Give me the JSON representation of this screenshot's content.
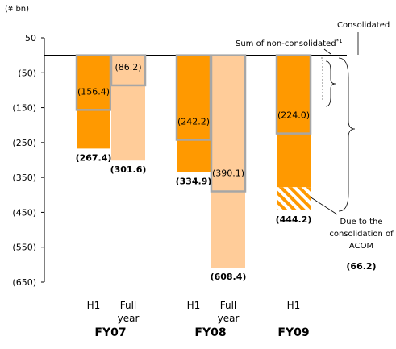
{
  "chart_data": {
    "type": "bar",
    "unit_label": "(¥ bn)",
    "y_ticks": [
      "50",
      "(50)",
      "(150)",
      "(250)",
      "(350)",
      "(450)",
      "(550)",
      "(650)"
    ],
    "y_tick_values": [
      50,
      -50,
      -150,
      -250,
      -350,
      -450,
      -550,
      -650
    ],
    "ylim": [
      -650,
      50
    ],
    "colors": {
      "h1": "#ff9900",
      "full_year": "#ffcc99",
      "border": "#a6a6a6"
    },
    "bars": [
      {
        "label": "H1",
        "group": "FY07",
        "value": -267.4,
        "value_label": "(267.4)",
        "non_consolidated": -156.4,
        "non_consolidated_label": "(156.4)",
        "color_key": "h1"
      },
      {
        "label": "Full year",
        "group": "FY07",
        "value": -301.6,
        "value_label": "(301.6)",
        "non_consolidated": -86.2,
        "non_consolidated_label": "(86.2)",
        "color_key": "full_year"
      },
      {
        "label": "H1",
        "group": "FY08",
        "value": -334.9,
        "value_label": "(334.9)",
        "non_consolidated": -242.2,
        "non_consolidated_label": "(242.2)",
        "color_key": "h1"
      },
      {
        "label": "Full year",
        "group": "FY08",
        "value": -608.4,
        "value_label": "(608.4)",
        "non_consolidated": -390.1,
        "non_consolidated_label": "(390.1)",
        "color_key": "full_year"
      },
      {
        "label": "H1",
        "group": "FY09",
        "value": -444.2,
        "value_label": "(444.2)",
        "non_consolidated": -224.0,
        "non_consolidated_label": "(224.0)",
        "hatched_from": -378.0,
        "color_key": "h1"
      }
    ],
    "x_labels": [
      {
        "line1": "H1",
        "line2": ""
      },
      {
        "line1": "Full",
        "line2": "year"
      },
      {
        "line1": "H1",
        "line2": ""
      },
      {
        "line1": "Full",
        "line2": "year"
      },
      {
        "line1": "H1",
        "line2": ""
      }
    ],
    "groups": [
      "FY07",
      "FY08",
      "FY09"
    ],
    "annotations": {
      "consolidated": "Consolidated",
      "sum_non_consolidated": "Sum of non-consolidated",
      "sum_non_consolidated_sup": "*1",
      "due_line1": "Due to the",
      "due_line2": "consolidation of",
      "due_line3": "ACOM",
      "due_value": "(66.2)"
    }
  }
}
